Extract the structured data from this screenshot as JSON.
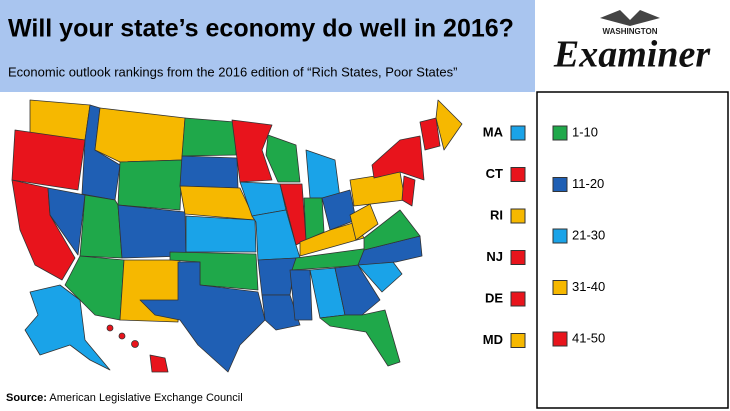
{
  "header": {
    "title": "Will your state’s economy do well in 2016?",
    "subtitle": "Economic outlook rankings from the 2016 edition of “Rich States, Poor States”"
  },
  "logo": {
    "top": "WASHINGTON",
    "name": "Examiner"
  },
  "small_states": [
    {
      "label": "MA",
      "color": "#1aa3e8"
    },
    {
      "label": "CT",
      "color": "#e8141c"
    },
    {
      "label": "RI",
      "color": "#f6b800"
    },
    {
      "label": "NJ",
      "color": "#e8141c"
    },
    {
      "label": "DE",
      "color": "#e8141c"
    },
    {
      "label": "MD",
      "color": "#f6b800"
    }
  ],
  "legend": [
    {
      "label": "1-10",
      "color": "#1fa84a"
    },
    {
      "label": "11-20",
      "color": "#1f5fb4"
    },
    {
      "label": "21-30",
      "color": "#1aa3e8"
    },
    {
      "label": "31-40",
      "color": "#f6b800"
    },
    {
      "label": "41-50",
      "color": "#e8141c"
    }
  ],
  "source": {
    "prefix": "Source:",
    "text": "American Legislative Exchange Council"
  }
}
